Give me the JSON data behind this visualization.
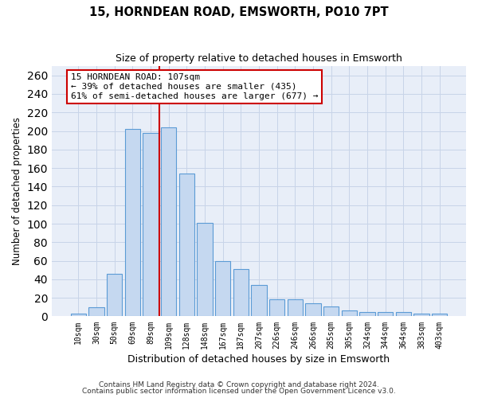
{
  "title1": "15, HORNDEAN ROAD, EMSWORTH, PO10 7PT",
  "title2": "Size of property relative to detached houses in Emsworth",
  "xlabel": "Distribution of detached houses by size in Emsworth",
  "ylabel": "Number of detached properties",
  "bar_labels": [
    "10sqm",
    "30sqm",
    "50sqm",
    "69sqm",
    "89sqm",
    "109sqm",
    "128sqm",
    "148sqm",
    "167sqm",
    "187sqm",
    "207sqm",
    "226sqm",
    "246sqm",
    "266sqm",
    "285sqm",
    "305sqm",
    "324sqm",
    "344sqm",
    "364sqm",
    "383sqm",
    "403sqm"
  ],
  "bar_values": [
    3,
    10,
    46,
    202,
    198,
    204,
    154,
    101,
    60,
    51,
    34,
    18,
    18,
    14,
    11,
    6,
    5,
    5,
    5,
    3,
    3
  ],
  "bar_color": "#c5d8f0",
  "bar_edge_color": "#5b9bd5",
  "vline_x": 4.5,
  "vline_color": "#cc0000",
  "annotation_line1": "15 HORNDEAN ROAD: 107sqm",
  "annotation_line2": "← 39% of detached houses are smaller (435)",
  "annotation_line3": "61% of semi-detached houses are larger (677) →",
  "annotation_box_facecolor": "white",
  "annotation_box_edgecolor": "#cc0000",
  "ylim": [
    0,
    270
  ],
  "yticks": [
    0,
    20,
    40,
    60,
    80,
    100,
    120,
    140,
    160,
    180,
    200,
    220,
    240,
    260
  ],
  "grid_color": "#c8d4e8",
  "bg_color": "#e8eef8",
  "footer1": "Contains HM Land Registry data © Crown copyright and database right 2024.",
  "footer2": "Contains public sector information licensed under the Open Government Licence v3.0."
}
